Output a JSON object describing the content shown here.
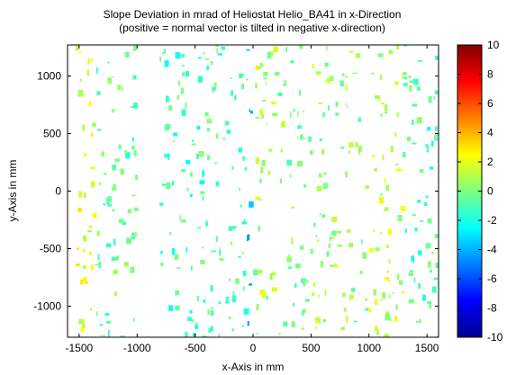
{
  "chart_data": {
    "type": "heatmap",
    "title": "Slope Deviation in mrad of Heliostat Helio_BA41 in x-Direction",
    "subtitle": "(positive = normal vector is tilted in negative x-direction)",
    "xlabel": "x-Axis in mm",
    "ylabel": "y-Axis in mm",
    "xlim": [
      -1600,
      1600
    ],
    "ylim": [
      -1270,
      1270
    ],
    "x_ticks": [
      -1500,
      -1000,
      -500,
      0,
      500,
      1000,
      1500
    ],
    "y_ticks": [
      -1000,
      -500,
      0,
      500,
      1000
    ],
    "colorbar": {
      "min": -10,
      "max": 10,
      "ticks": [
        -10,
        -8,
        -6,
        -4,
        -2,
        0,
        2,
        4,
        6,
        8,
        10
      ],
      "colormap": "jet"
    },
    "grid": false,
    "facets_x_mm": [
      [
        -1600,
        -10
      ],
      [
        10,
        1600
      ]
    ],
    "facets_y_mm": [
      [
        -1270,
        -10
      ],
      [
        10,
        1270
      ]
    ],
    "value_zones": [
      {
        "x": [
          -1520,
          -1350
        ],
        "y": [
          -1270,
          1270
        ],
        "value": 1.8
      },
      {
        "x": [
          -1350,
          -1000
        ],
        "y": [
          -1270,
          1270
        ],
        "value": -0.5
      },
      {
        "x": [
          -800,
          -450
        ],
        "y": [
          -1270,
          1270
        ],
        "value": -1.2
      },
      {
        "x": [
          -450,
          -50
        ],
        "y": [
          -1270,
          1270
        ],
        "value": -0.8
      },
      {
        "x": [
          -50,
          0
        ],
        "y": [
          -1270,
          1270
        ],
        "value": -3.5
      },
      {
        "x": [
          0,
          200
        ],
        "y": [
          -1270,
          1270
        ],
        "value": 0.8
      },
      {
        "x": [
          200,
          450
        ],
        "y": [
          -1270,
          1270
        ],
        "value": 0.2
      },
      {
        "x": [
          450,
          1000
        ],
        "y": [
          -1270,
          1270
        ],
        "value": 0.5
      },
      {
        "x": [
          1000,
          1300
        ],
        "y": [
          -1270,
          1270
        ],
        "value": 1.2
      },
      {
        "x": [
          1300,
          1600
        ],
        "y": [
          -1270,
          1270
        ],
        "value": -1.0
      }
    ]
  }
}
